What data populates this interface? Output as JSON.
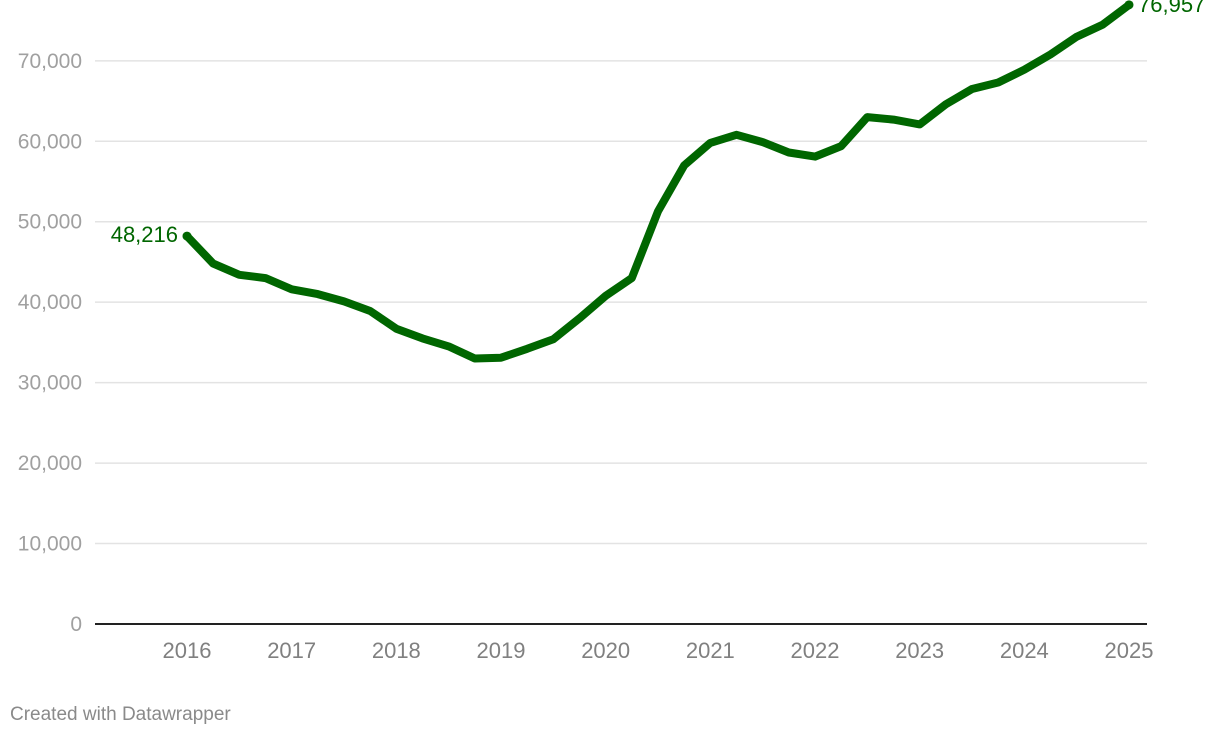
{
  "chart_data": {
    "type": "line",
    "title": "",
    "xlabel": "",
    "ylabel": "",
    "ylim": [
      0,
      75000
    ],
    "x_ticks": [
      "2016",
      "2017",
      "2018",
      "2019",
      "2020",
      "2021",
      "2022",
      "2023",
      "2024",
      "2025"
    ],
    "y_ticks": [
      {
        "value": 0,
        "label": "0"
      },
      {
        "value": 10000,
        "label": "10,000"
      },
      {
        "value": 20000,
        "label": "20,000"
      },
      {
        "value": 30000,
        "label": "30,000"
      },
      {
        "value": 40000,
        "label": "40,000"
      },
      {
        "value": 50000,
        "label": "50,000"
      },
      {
        "value": 60000,
        "label": "60,000"
      },
      {
        "value": 70000,
        "label": "70,000"
      }
    ],
    "grid": true,
    "series": [
      {
        "name": "value",
        "color": "#006600",
        "x": [
          2016.0,
          2016.25,
          2016.5,
          2016.75,
          2017.0,
          2017.25,
          2017.5,
          2017.75,
          2018.0,
          2018.25,
          2018.5,
          2018.75,
          2019.0,
          2019.25,
          2019.5,
          2019.75,
          2020.0,
          2020.25,
          2020.5,
          2020.75,
          2021.0,
          2021.25,
          2021.5,
          2021.75,
          2022.0,
          2022.25,
          2022.5,
          2022.75,
          2023.0,
          2023.25,
          2023.5,
          2023.75,
          2024.0,
          2024.25,
          2024.5,
          2024.75,
          2025.0
        ],
        "values": [
          48216,
          44800,
          43400,
          43000,
          41600,
          41000,
          40100,
          38900,
          36700,
          35500,
          34500,
          33000,
          33100,
          34200,
          35400,
          38000,
          40800,
          43000,
          51300,
          57000,
          59800,
          60800,
          59900,
          58600,
          58100,
          59400,
          63000,
          62700,
          62100,
          64600,
          66500,
          67300,
          68900,
          70800,
          73000,
          74500,
          76957
        ]
      }
    ],
    "annotations": {
      "start_label": "48,216",
      "end_label": "76,957"
    }
  },
  "footer": {
    "credit": "Created with Datawrapper"
  }
}
